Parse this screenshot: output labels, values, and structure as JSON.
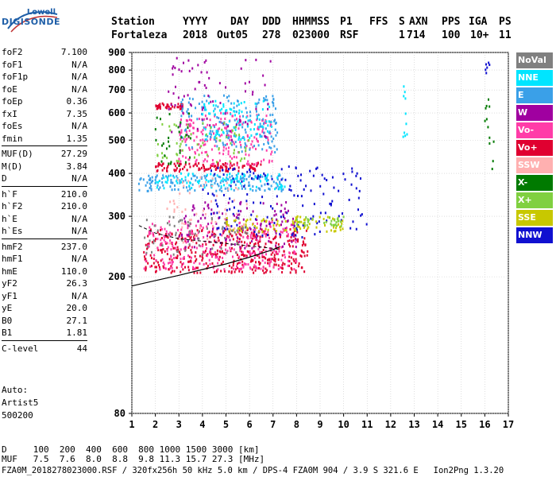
{
  "logo": {
    "top": "Lowell",
    "main": "DIGISONDE"
  },
  "header": {
    "row1": [
      "Station",
      "YYYY",
      "DAY",
      "DDD",
      "HHMMSS",
      "P1",
      "FFS",
      "S",
      "AXN",
      "PPS",
      "IGA",
      "PS"
    ],
    "row2": [
      "Fortaleza",
      "2018",
      "Out05",
      "278",
      "023000",
      "RSF",
      "1",
      "714",
      "100",
      "10+",
      "11"
    ]
  },
  "params": [
    [
      {
        "label": "foF2",
        "value": "7.100"
      },
      {
        "label": "foF1",
        "value": "N/A"
      },
      {
        "label": "foF1p",
        "value": "N/A"
      },
      {
        "label": "foE",
        "value": "N/A"
      },
      {
        "label": "foEp",
        "value": "0.36"
      },
      {
        "label": "fxI",
        "value": "7.35"
      },
      {
        "label": "foEs",
        "value": "N/A"
      },
      {
        "label": "fmin",
        "value": "1.35"
      }
    ],
    [
      {
        "label": "MUF(D)",
        "value": "27.29"
      },
      {
        "label": "M(D)",
        "value": "3.84"
      },
      {
        "label": "D",
        "value": "N/A"
      }
    ],
    [
      {
        "label": "h`F",
        "value": "210.0"
      },
      {
        "label": "h`F2",
        "value": "210.0"
      },
      {
        "label": "h`E",
        "value": "N/A"
      },
      {
        "label": "h`Es",
        "value": "N/A"
      }
    ],
    [
      {
        "label": "hmF2",
        "value": "237.0"
      },
      {
        "label": "hmF1",
        "value": "N/A"
      },
      {
        "label": "hmE",
        "value": "110.0"
      },
      {
        "label": "yF2",
        "value": "26.3"
      },
      {
        "label": "yF1",
        "value": "N/A"
      },
      {
        "label": "yE",
        "value": "20.0"
      },
      {
        "label": "B0",
        "value": "27.1"
      },
      {
        "label": "B1",
        "value": "1.81"
      }
    ],
    [
      {
        "label": "C-level",
        "value": "44"
      }
    ]
  ],
  "auto": [
    "Auto:",
    "Artist5",
    "500200"
  ],
  "legend": [
    {
      "label": "NoVal",
      "color": "#808080"
    },
    {
      "label": "NNE",
      "color": "#00e5ff"
    },
    {
      "label": "E",
      "color": "#3aa0e8"
    },
    {
      "label": "W",
      "color": "#a000a0"
    },
    {
      "label": "Vo-",
      "color": "#ff3ca8"
    },
    {
      "label": "Vo+",
      "color": "#e00030"
    },
    {
      "label": "SSW",
      "color": "#ffb0b0"
    },
    {
      "label": "X-",
      "color": "#007a00"
    },
    {
      "label": "X+",
      "color": "#80d040"
    },
    {
      "label": "SSE",
      "color": "#c8c800"
    },
    {
      "label": "NNW",
      "color": "#1010d0"
    }
  ],
  "footer": {
    "line1": "D     100  200  400  600  800 1000 1500 3000 [km]",
    "line2": "MUF   7.5  7.6  8.0  8.8  9.8 11.3 15.7 27.3 [MHz]",
    "line3": "FZA0M_2018278023000.RSF / 320fx256h 50 kHz 5.0 km / DPS-4 FZA0M 904 / 3.9 S 321.6 E   Ion2Png 1.3.20"
  },
  "chart_data": {
    "type": "scatter",
    "title": "",
    "xlabel": "",
    "ylabel": "",
    "xlim": [
      1,
      17
    ],
    "ylim": [
      80,
      900
    ],
    "y_scale": "log",
    "x_ticks": [
      1,
      2,
      3,
      4,
      5,
      6,
      7,
      8,
      9,
      10,
      11,
      12,
      13,
      14,
      15,
      16,
      17
    ],
    "y_ticks": [
      80,
      200,
      300,
      400,
      500,
      600,
      700,
      800,
      900
    ],
    "grid": true,
    "legend_placement": "right",
    "series": [
      {
        "name": "Vo+",
        "clusters": [
          {
            "f": [
              1.5,
              8.5
            ],
            "h": [
              205,
              275
            ],
            "n": 420
          },
          {
            "f": [
              2.0,
              6.5
            ],
            "h": [
              405,
              430
            ],
            "n": 120
          },
          {
            "f": [
              2.0,
              3.2
            ],
            "h": [
              615,
              640
            ],
            "n": 40
          }
        ]
      },
      {
        "name": "Vo-",
        "clusters": [
          {
            "f": [
              1.5,
              8.0
            ],
            "h": [
              210,
              290
            ],
            "n": 260
          },
          {
            "f": [
              3.0,
              7.0
            ],
            "h": [
              420,
              600
            ],
            "n": 200
          }
        ]
      },
      {
        "name": "E",
        "clusters": [
          {
            "f": [
              1.3,
              7.5
            ],
            "h": [
              355,
              395
            ],
            "n": 160
          },
          {
            "f": [
              3.0,
              7.2
            ],
            "h": [
              460,
              680
            ],
            "n": 160
          }
        ]
      },
      {
        "name": "NNE",
        "clusters": [
          {
            "f": [
              2.0,
              7.5
            ],
            "h": [
              360,
              400
            ],
            "n": 90
          },
          {
            "f": [
              4.0,
              7.0
            ],
            "h": [
              500,
              650
            ],
            "n": 90
          },
          {
            "f": [
              12.5,
              12.7
            ],
            "h": [
              480,
              720
            ],
            "n": 10
          }
        ]
      },
      {
        "name": "NNW",
        "clusters": [
          {
            "f": [
              4.0,
              11.0
            ],
            "h": [
              260,
              420
            ],
            "n": 160
          },
          {
            "f": [
              16.0,
              16.2
            ],
            "h": [
              780,
              840
            ],
            "n": 6
          }
        ]
      },
      {
        "name": "W",
        "clusters": [
          {
            "f": [
              3.0,
              8.0
            ],
            "h": [
              240,
              330
            ],
            "n": 120
          },
          {
            "f": [
              2.5,
              7.0
            ],
            "h": [
              500,
              880
            ],
            "n": 80
          }
        ]
      },
      {
        "name": "SSE",
        "clusters": [
          {
            "f": [
              5.0,
              10.0
            ],
            "h": [
              270,
              300
            ],
            "n": 100
          }
        ]
      },
      {
        "name": "X+",
        "clusters": [
          {
            "f": [
              2.0,
              6.0
            ],
            "h": [
              430,
              560
            ],
            "n": 60
          },
          {
            "f": [
              8.0,
              10.0
            ],
            "h": [
              280,
              300
            ],
            "n": 30
          }
        ]
      },
      {
        "name": "X-",
        "clusters": [
          {
            "f": [
              2.0,
              3.5
            ],
            "h": [
              420,
              600
            ],
            "n": 30
          },
          {
            "f": [
              16.0,
              16.4
            ],
            "h": [
              400,
              800
            ],
            "n": 12
          }
        ]
      },
      {
        "name": "SSW",
        "clusters": [
          {
            "f": [
              2.5,
              6.0
            ],
            "h": [
              250,
              400
            ],
            "n": 60
          }
        ]
      },
      {
        "name": "NoVal",
        "clusters": [
          {
            "f": [
              1.5,
              6.0
            ],
            "h": [
              230,
              300
            ],
            "n": 60
          }
        ]
      }
    ],
    "profile_solid": [
      [
        1.0,
        188
      ],
      [
        2.0,
        195
      ],
      [
        3.0,
        202
      ],
      [
        4.0,
        210
      ],
      [
        5.0,
        218
      ],
      [
        6.0,
        228
      ],
      [
        7.0,
        240
      ],
      [
        7.3,
        245
      ]
    ],
    "profile_dashed": [
      [
        1.3,
        282
      ],
      [
        2.0,
        268
      ],
      [
        3.0,
        258
      ],
      [
        4.0,
        254
      ],
      [
        5.0,
        250
      ],
      [
        6.0,
        246
      ],
      [
        7.0,
        242
      ],
      [
        7.3,
        240
      ]
    ]
  }
}
